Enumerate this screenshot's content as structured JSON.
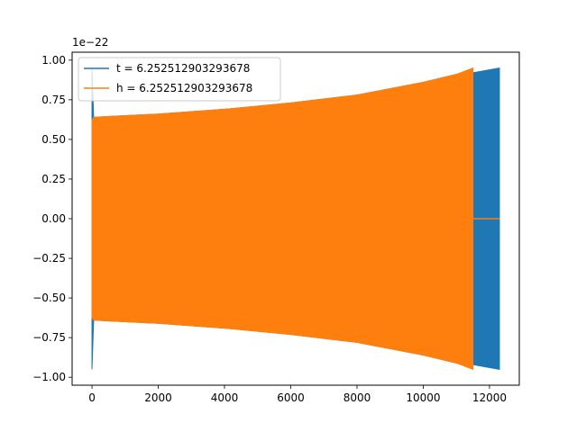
{
  "chart_data": {
    "type": "line",
    "title": "",
    "xlabel": "",
    "ylabel": "",
    "y_offset_label": "1e−22",
    "xlim": [
      -600,
      12900
    ],
    "ylim": [
      -1.05,
      1.05
    ],
    "xticks": [
      0,
      2000,
      4000,
      6000,
      8000,
      10000,
      12000
    ],
    "xtick_labels": [
      "0",
      "2000",
      "4000",
      "6000",
      "8000",
      "10000",
      "12000"
    ],
    "yticks": [
      1.0,
      0.75,
      0.5,
      0.25,
      0.0,
      -0.25,
      -0.5,
      -0.75,
      -1.0
    ],
    "ytick_labels": [
      "1.00",
      "0.75",
      "0.50",
      "0.25",
      "0.00",
      "−0.25",
      "−0.50",
      "−0.75",
      "−1.00"
    ],
    "grid": false,
    "legend_position": "top-left",
    "series": [
      {
        "name": "t = 6.252512903293678",
        "color": "#1f77b4",
        "envelope": {
          "x": [
            0,
            50,
            100,
            1000,
            2000,
            4000,
            6000,
            8000,
            10000,
            11000,
            11500,
            12300
          ],
          "upper": [
            0.95,
            0.64,
            0.64,
            0.65,
            0.66,
            0.69,
            0.73,
            0.78,
            0.86,
            0.91,
            0.92,
            0.95
          ],
          "lower": [
            -0.95,
            -0.64,
            -0.64,
            -0.65,
            -0.66,
            -0.69,
            -0.73,
            -0.78,
            -0.86,
            -0.91,
            -0.92,
            -0.95
          ]
        }
      },
      {
        "name": "h = 6.252512903293678",
        "color": "#ff7f0e",
        "envelope": {
          "x": [
            0,
            50,
            100,
            1000,
            2000,
            4000,
            6000,
            8000,
            10000,
            11000,
            11500
          ],
          "upper": [
            0.62,
            0.64,
            0.64,
            0.65,
            0.66,
            0.69,
            0.73,
            0.78,
            0.86,
            0.91,
            0.95
          ],
          "lower": [
            -0.62,
            -0.64,
            -0.64,
            -0.65,
            -0.66,
            -0.69,
            -0.73,
            -0.78,
            -0.86,
            -0.91,
            -0.95
          ]
        },
        "tail": {
          "x": [
            11500,
            12300
          ],
          "y": [
            0,
            0
          ]
        }
      }
    ]
  }
}
